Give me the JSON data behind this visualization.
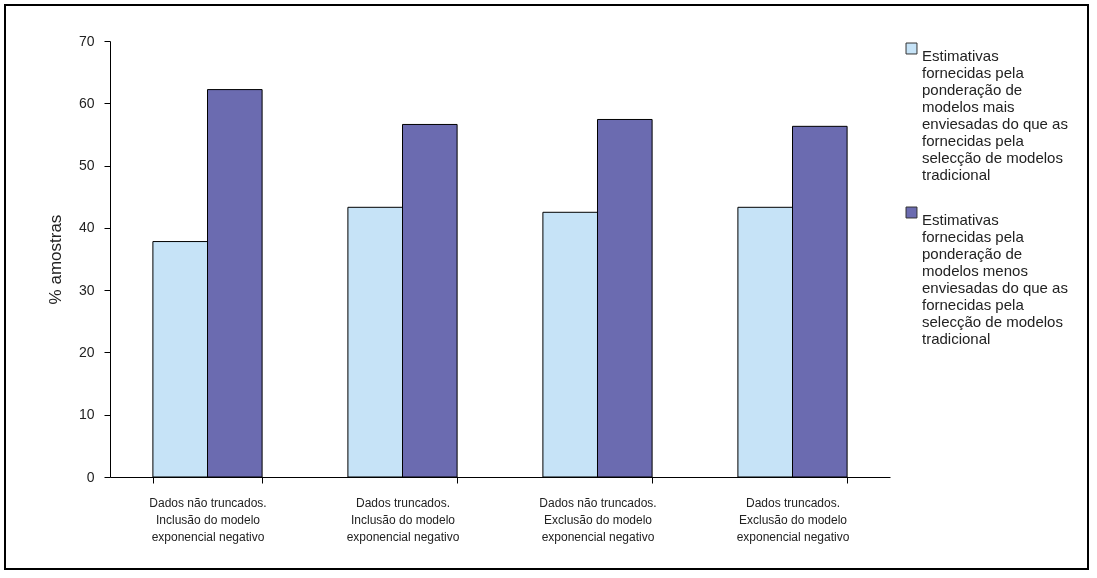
{
  "chart_data": {
    "type": "bar",
    "ylabel": "% amostras",
    "categories": [
      "Dados não truncados.\nInclusão do modelo\nexponencial negativo",
      "Dados truncados.\nInclusão do modelo\nexponencial negativo",
      "Dados não truncados.\nExclusão do modelo\nexponencial negativo",
      "Dados truncados.\nExclusão do modelo\nexponencial negativo"
    ],
    "series": [
      {
        "name": "Estimativas\nfornecidas pela\nponderação de\nmodelos mais\nenviesadas do que as\nfornecidas pela\nselecção de modelos\ntradicional",
        "color": "#c6e3f7",
        "values": [
          37.8,
          43.3,
          42.5,
          43.3
        ]
      },
      {
        "name": "Estimativas\nfornecidas pela\nponderação de\nmodelos menos\nenviesadas do que as\nfornecidas pela\nselecção de modelos\ntradicional",
        "color": "#6b6bb0",
        "values": [
          62.2,
          56.6,
          57.4,
          56.3
        ]
      }
    ],
    "ylim": [
      0,
      70
    ],
    "yticks": [
      0,
      10,
      20,
      30,
      40,
      50,
      60,
      70
    ],
    "legend": "right"
  }
}
